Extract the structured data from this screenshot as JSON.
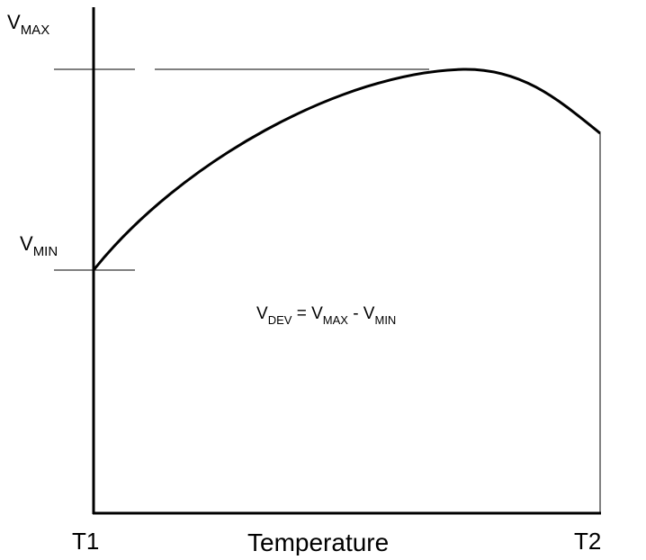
{
  "labels": {
    "v_max": {
      "text": "V",
      "sub": "MAX"
    },
    "v_min": {
      "text": "V",
      "sub": "MIN"
    }
  },
  "equation": [
    {
      "text": "V",
      "sub": "DEV"
    },
    {
      "text": " = V",
      "sub": "MAX"
    },
    {
      "text": " - V",
      "sub": "MIN"
    }
  ],
  "x_axis": {
    "start": "T1",
    "label": "Temperature",
    "end": "T2"
  }
}
